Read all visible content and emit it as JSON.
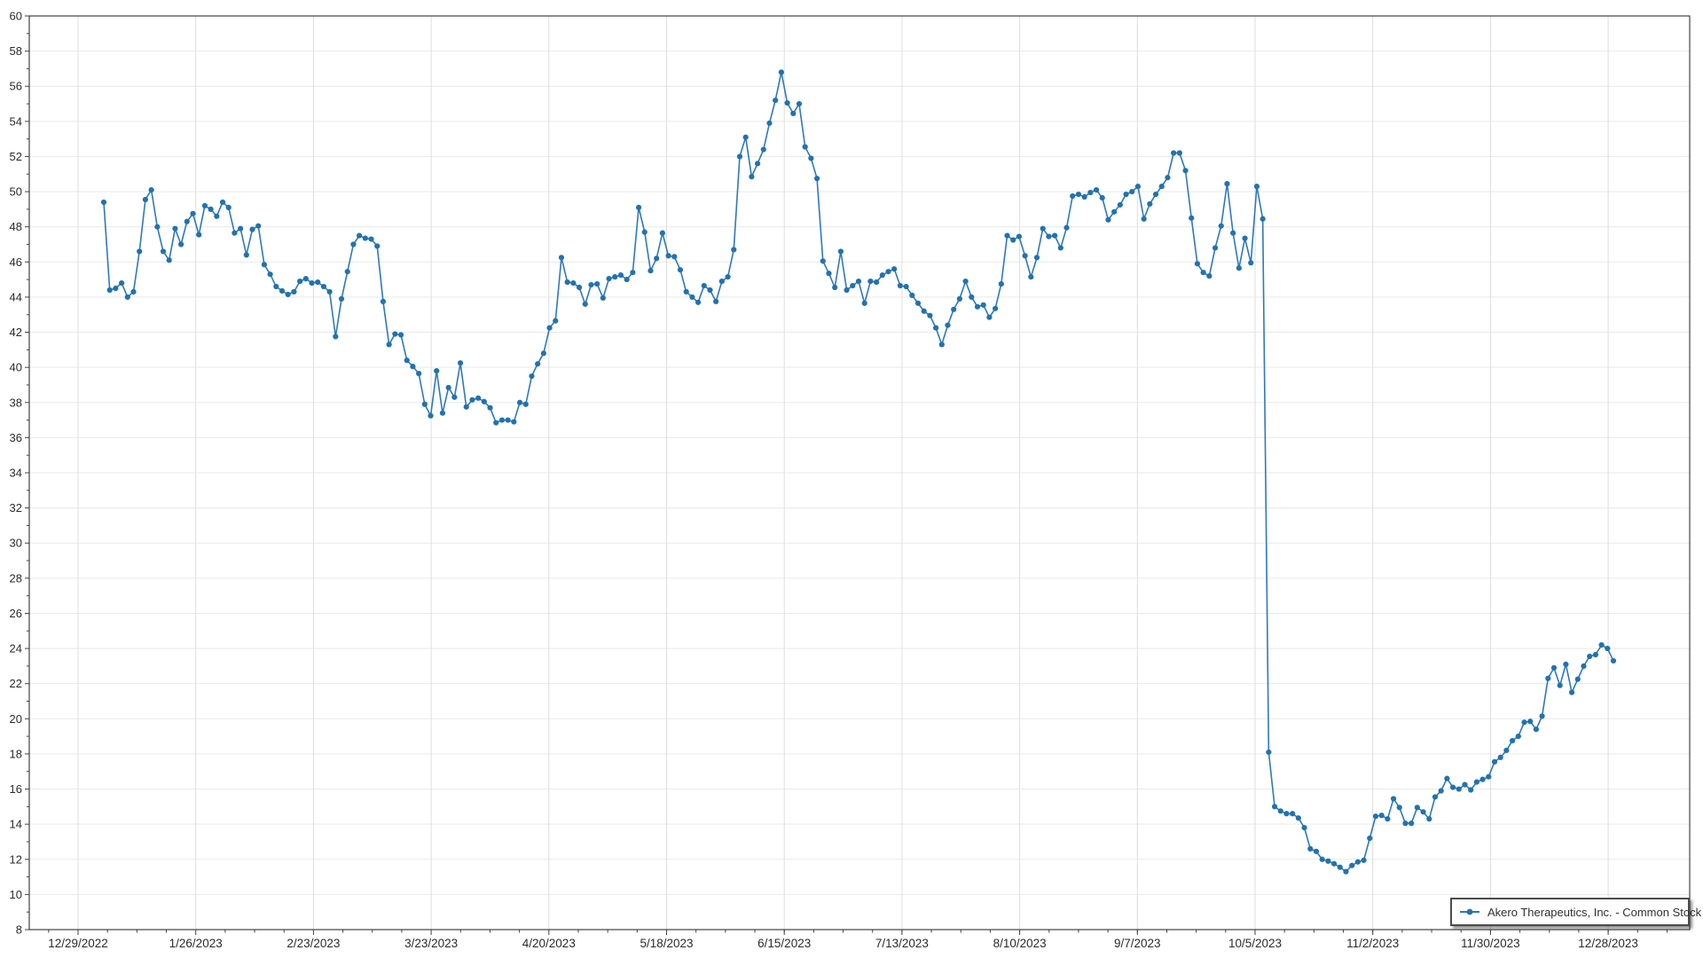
{
  "chart_data": {
    "type": "line",
    "title": "",
    "xlabel": "",
    "ylabel": "",
    "ylim": [
      8,
      60
    ],
    "y_ticks": [
      8,
      10,
      12,
      14,
      16,
      18,
      20,
      22,
      24,
      26,
      28,
      30,
      32,
      34,
      36,
      38,
      40,
      42,
      44,
      46,
      48,
      50,
      52,
      54,
      56,
      58,
      60
    ],
    "x_tick_labels": [
      "12/29/2022",
      "1/26/2023",
      "2/23/2023",
      "3/23/2023",
      "4/20/2023",
      "5/18/2023",
      "6/15/2023",
      "7/13/2023",
      "8/10/2023",
      "9/7/2023",
      "10/5/2023",
      "11/2/2023",
      "11/30/2023",
      "12/28/2023"
    ],
    "grid": true,
    "legend_position": "bottom-right",
    "line_color": "#2e79b9",
    "marker_color": "#2272ae",
    "series": [
      {
        "name": "Akero Therapeutics, Inc. - Common Stock",
        "values": [
          49.4,
          44.4,
          44.5,
          44.8,
          44.0,
          44.3,
          46.6,
          49.55,
          50.1,
          48.0,
          46.6,
          46.1,
          47.9,
          47.0,
          48.3,
          48.75,
          47.55,
          49.2,
          49.0,
          48.6,
          49.4,
          49.1,
          47.65,
          47.9,
          46.4,
          47.85,
          48.05,
          45.85,
          45.3,
          44.6,
          44.35,
          44.15,
          44.3,
          44.9,
          45.05,
          44.8,
          44.85,
          44.6,
          44.3,
          41.75,
          43.9,
          45.45,
          47.0,
          47.5,
          47.35,
          47.3,
          46.9,
          43.75,
          41.3,
          41.9,
          41.85,
          40.4,
          40.05,
          39.65,
          37.9,
          37.25,
          39.8,
          37.4,
          38.85,
          38.3,
          40.25,
          37.75,
          38.15,
          38.25,
          38.05,
          37.7,
          36.85,
          37.0,
          37.0,
          36.9,
          38.0,
          37.9,
          39.5,
          40.2,
          40.8,
          42.25,
          42.65,
          46.25,
          44.85,
          44.8,
          44.55,
          43.6,
          44.7,
          44.75,
          43.95,
          45.05,
          45.15,
          45.25,
          45.0,
          45.4,
          49.1,
          47.7,
          45.5,
          46.2,
          47.65,
          46.35,
          46.3,
          45.55,
          44.3,
          44.0,
          43.7,
          44.65,
          44.4,
          43.75,
          44.9,
          45.15,
          46.7,
          52.0,
          53.1,
          50.85,
          51.6,
          52.4,
          53.9,
          55.2,
          56.8,
          55.05,
          54.45,
          55.0,
          52.55,
          51.9,
          50.75,
          46.05,
          45.35,
          44.55,
          46.6,
          44.4,
          44.65,
          44.9,
          43.65,
          44.9,
          44.85,
          45.25,
          45.45,
          45.6,
          44.65,
          44.6,
          44.1,
          43.65,
          43.2,
          42.95,
          42.25,
          41.3,
          42.4,
          43.3,
          43.9,
          44.9,
          44.0,
          43.45,
          43.55,
          42.85,
          43.35,
          44.75,
          47.5,
          47.25,
          47.45,
          46.35,
          45.15,
          46.25,
          47.9,
          47.45,
          47.5,
          46.8,
          47.95,
          49.75,
          49.85,
          49.7,
          49.95,
          50.1,
          49.65,
          48.4,
          48.85,
          49.25,
          49.85,
          50.0,
          50.3,
          48.45,
          49.3,
          49.85,
          50.3,
          50.8,
          52.2,
          52.2,
          51.2,
          48.5,
          45.9,
          45.4,
          45.2,
          46.8,
          48.05,
          50.45,
          47.65,
          45.65,
          47.35,
          45.95,
          50.3,
          48.45,
          18.1,
          15.0,
          14.75,
          14.6,
          14.6,
          14.35,
          13.8,
          12.6,
          12.45,
          12.0,
          11.9,
          11.75,
          11.55,
          11.3,
          11.65,
          11.85,
          11.95,
          13.2,
          14.45,
          14.5,
          14.3,
          15.45,
          14.95,
          14.05,
          14.05,
          14.95,
          14.7,
          14.3,
          15.55,
          15.9,
          16.6,
          16.1,
          16.0,
          16.25,
          15.95,
          16.4,
          16.55,
          16.7,
          17.55,
          17.8,
          18.2,
          18.75,
          19.0,
          19.8,
          19.85,
          19.4,
          20.15,
          22.3,
          22.9,
          21.9,
          23.1,
          21.5,
          22.25,
          23.0,
          23.55,
          23.65,
          24.2,
          24.0,
          23.3
        ]
      }
    ]
  }
}
